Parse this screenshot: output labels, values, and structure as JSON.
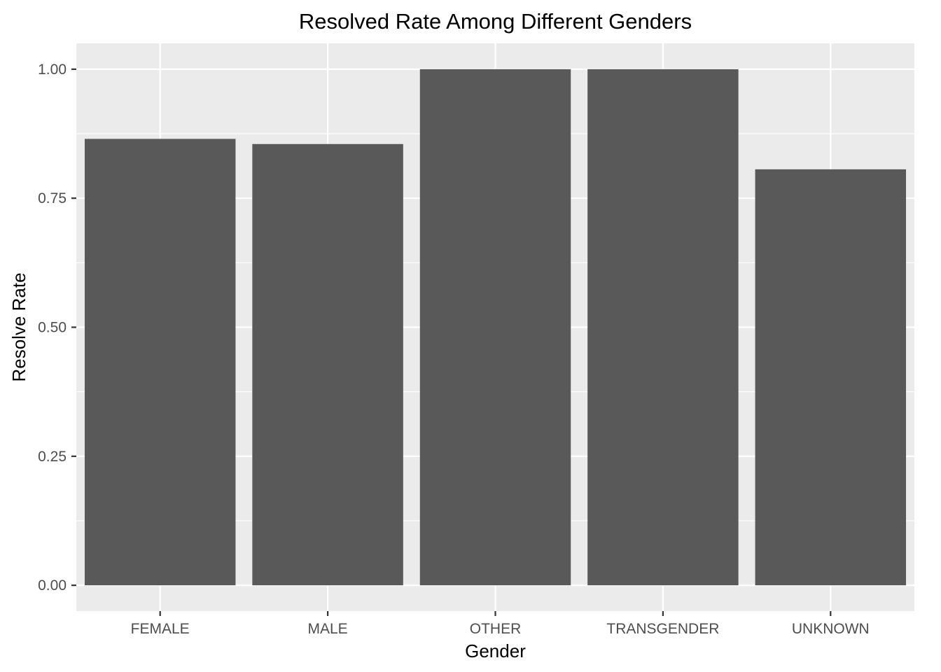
{
  "chart_data": {
    "type": "bar",
    "title": "Resolved Rate Among Different Genders",
    "xlabel": "Gender",
    "ylabel": "Resolve Rate",
    "categories": [
      "FEMALE",
      "MALE",
      "OTHER",
      "TRANSGENDER",
      "UNKNOWN"
    ],
    "values": [
      0.865,
      0.855,
      1.0,
      1.0,
      0.806
    ],
    "ylim": [
      -0.05,
      1.05
    ],
    "yticks": [
      0.0,
      0.25,
      0.5,
      0.75,
      1.0
    ],
    "ytick_labels": [
      "0.00",
      "0.25",
      "0.50",
      "0.75",
      "1.00"
    ],
    "grid": true,
    "legend": "none",
    "colors": {
      "bar": "#595959",
      "panel": "#ebebeb",
      "grid": "#ffffff"
    }
  }
}
